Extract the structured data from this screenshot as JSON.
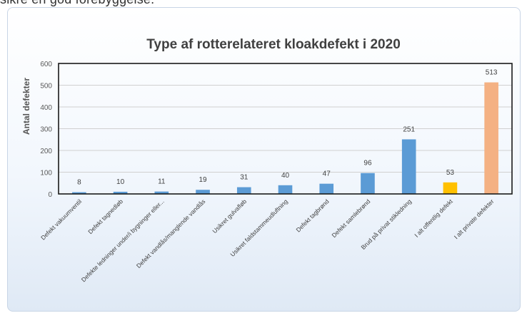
{
  "page": {
    "top_text": "sikre en god forebyggelse."
  },
  "chart_data": {
    "type": "bar",
    "title": "Type af rotterelateret kloakdefekt i 2020",
    "xlabel": "",
    "ylabel": "Antal defekter",
    "ylim": [
      0,
      600
    ],
    "yticks": [
      0,
      100,
      200,
      300,
      400,
      500,
      600
    ],
    "grid": true,
    "legend": "none",
    "categories": [
      "Defekt vakuumventil",
      "Defekt tagnedløb",
      "Defekte ledninger under/i bygninger eller...",
      "Defekt vandlås/manglende vandlås",
      "Usikret gulvafløb",
      "Usikret faldstammeudluftning",
      "Defekt tagbrønd",
      "Defekt samlebrønd",
      "Brud på privat stikledning",
      "I alt offentlig defekt",
      "I alt private defekter"
    ],
    "values": [
      8,
      10,
      11,
      19,
      31,
      40,
      47,
      96,
      251,
      53,
      513
    ],
    "colors": [
      "#5b9bd5",
      "#5b9bd5",
      "#5b9bd5",
      "#5b9bd5",
      "#5b9bd5",
      "#5b9bd5",
      "#5b9bd5",
      "#5b9bd5",
      "#5b9bd5",
      "#ffc000",
      "#f4b183"
    ]
  }
}
